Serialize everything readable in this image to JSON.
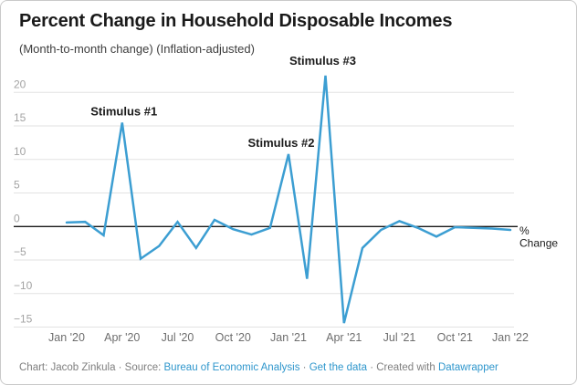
{
  "chart_data": {
    "type": "line",
    "title": "Percent Change in Household Disposable Incomes",
    "subtitle": "(Month-to-month change) (Inflation-adjusted)",
    "x": [
      "Jan '20",
      "Feb '20",
      "Mar '20",
      "Apr '20",
      "May '20",
      "Jun '20",
      "Jul '20",
      "Aug '20",
      "Sep '20",
      "Oct '20",
      "Nov '20",
      "Dec '20",
      "Jan '21",
      "Feb '21",
      "Mar '21",
      "Apr '21",
      "May '21",
      "Jun '21",
      "Jul '21",
      "Aug '21",
      "Sep '21",
      "Oct '21",
      "Nov '21",
      "Dec '21",
      "Jan '22"
    ],
    "values": [
      0.6,
      0.7,
      -1.3,
      15.5,
      -4.8,
      -2.9,
      0.7,
      -3.2,
      1.0,
      -0.4,
      -1.2,
      -0.2,
      10.8,
      -7.8,
      22.5,
      -14.4,
      -3.2,
      -0.5,
      0.8,
      -0.2,
      -1.5,
      -0.1,
      -0.2,
      -0.3,
      -0.5
    ],
    "series_label": "% Change",
    "y_ticks": [
      20,
      15,
      10,
      5,
      0,
      -5,
      -10,
      -15
    ],
    "y_tick_labels": [
      "20",
      "15",
      "10",
      "5",
      "0",
      "−5",
      "−10",
      "−15"
    ],
    "x_tick_indices": [
      0,
      3,
      6,
      9,
      12,
      15,
      18,
      21,
      24
    ],
    "x_tick_labels": [
      "Jan '20",
      "Apr '20",
      "Jul '20",
      "Oct '20",
      "Jan '21",
      "Apr '21",
      "Jul '21",
      "Oct '21",
      "Jan '22"
    ],
    "ylim": [
      -17,
      24
    ],
    "grid": true,
    "zero_baseline": true,
    "legend_position": "right-of-last-point",
    "annotations": [
      {
        "label": "Stimulus #1",
        "month_index": 3
      },
      {
        "label": "Stimulus #2",
        "month_index": 12
      },
      {
        "label": "Stimulus #3",
        "month_index": 14
      }
    ]
  },
  "footer": {
    "prefix": "Chart: Jacob Zinkula · Source: ",
    "source_link": "Bureau of Economic Analysis",
    "sep1": " · ",
    "data_link": "Get the data",
    "sep2": " · Created with ",
    "tool_link": "Datawrapper"
  },
  "colors": {
    "line": "#3c9ed2",
    "link": "#2e96cc",
    "grid": "#e2e2e2",
    "zero_line": "#1a1a1a",
    "axis_text_y": "#a3a3a3",
    "axis_text_x": "#6e6e6e",
    "title_text": "#1a1a1a",
    "subtitle_text": "#3d3d3d",
    "annotation_text": "#1a1a1a",
    "footer_text": "#7f7f7f",
    "border": "#c9c9c9"
  }
}
